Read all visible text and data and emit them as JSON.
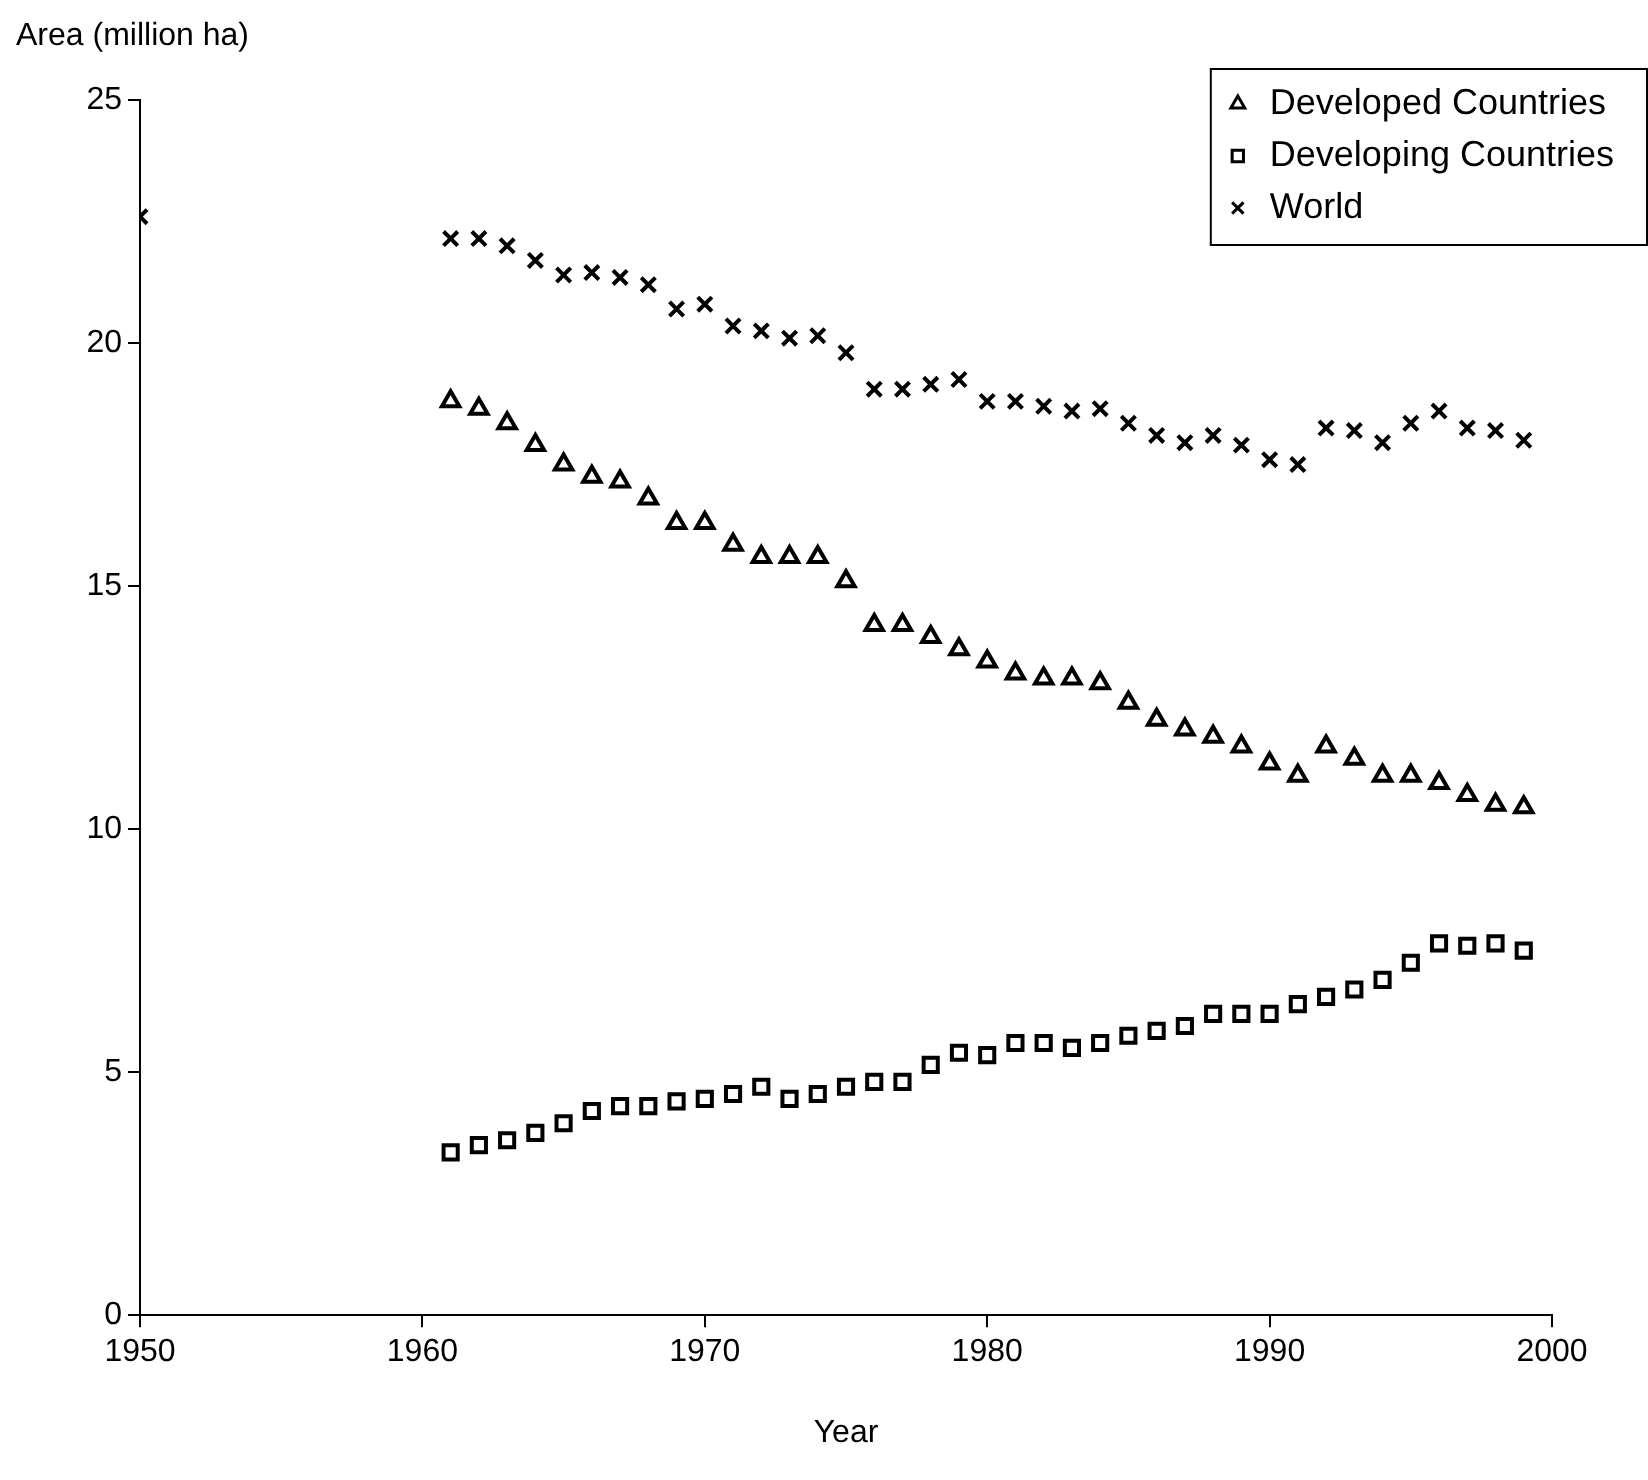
{
  "chart_data": {
    "type": "scatter",
    "xlabel": "Year",
    "ylabel": "Area (million ha)",
    "xlim": [
      1950,
      2000
    ],
    "xticks": [
      1950,
      1960,
      1970,
      1980,
      1990,
      2000
    ],
    "ylim": [
      0,
      25
    ],
    "yticks": [
      0,
      5,
      10,
      15,
      20,
      25
    ],
    "grid": false,
    "legend": "top right",
    "x": [
      1961,
      1962,
      1963,
      1964,
      1965,
      1966,
      1967,
      1968,
      1969,
      1970,
      1971,
      1972,
      1973,
      1974,
      1975,
      1976,
      1977,
      1978,
      1979,
      1980,
      1981,
      1982,
      1983,
      1984,
      1985,
      1986,
      1987,
      1988,
      1989,
      1990,
      1991,
      1992,
      1993,
      1994,
      1995,
      1996,
      1997,
      1998,
      1999
    ],
    "series": [
      {
        "name": "Developed Countries",
        "color": "#000000",
        "marker": "triangle",
        "values": [
          18.8,
          18.65,
          18.35,
          17.9,
          17.5,
          17.25,
          17.15,
          16.8,
          16.3,
          16.3,
          15.85,
          15.6,
          15.6,
          15.6,
          15.1,
          14.2,
          14.2,
          13.95,
          13.7,
          13.45,
          13.2,
          13.1,
          13.1,
          13.0,
          12.6,
          12.25,
          12.05,
          11.9,
          11.7,
          11.35,
          11.1,
          11.7,
          11.45,
          11.1,
          11.1,
          10.95,
          10.7,
          10.5,
          10.45
        ]
      },
      {
        "name": "Developing Countries",
        "color": "#000000",
        "marker": "square",
        "values": [
          3.35,
          3.5,
          3.6,
          3.75,
          3.95,
          4.2,
          4.3,
          4.3,
          4.4,
          4.45,
          4.55,
          4.7,
          4.45,
          4.55,
          4.7,
          4.8,
          4.8,
          5.15,
          5.4,
          5.35,
          5.6,
          5.6,
          5.5,
          5.6,
          5.75,
          5.85,
          5.95,
          6.2,
          6.2,
          6.2,
          6.4,
          6.55,
          6.7,
          6.9,
          7.25,
          7.65,
          7.6,
          7.65,
          7.5
        ]
      },
      {
        "name": "World",
        "color": "#000000",
        "marker": "cross",
        "x": [
          1950,
          1961,
          1962,
          1963,
          1964,
          1965,
          1966,
          1967,
          1968,
          1969,
          1970,
          1971,
          1972,
          1973,
          1974,
          1975,
          1976,
          1977,
          1978,
          1979,
          1980,
          1981,
          1982,
          1983,
          1984,
          1985,
          1986,
          1987,
          1988,
          1989,
          1990,
          1991,
          1992,
          1993,
          1994,
          1995,
          1996,
          1997,
          1998,
          1999
        ],
        "values": [
          22.6,
          22.15,
          22.15,
          22.0,
          21.7,
          21.4,
          21.45,
          21.35,
          21.2,
          20.7,
          20.8,
          20.35,
          20.25,
          20.1,
          20.15,
          19.8,
          19.05,
          19.05,
          19.15,
          19.25,
          18.8,
          18.8,
          18.7,
          18.6,
          18.65,
          18.35,
          18.1,
          17.95,
          18.1,
          17.9,
          17.6,
          17.5,
          18.25,
          18.2,
          17.95,
          18.35,
          18.6,
          18.25,
          18.2,
          18.0
        ]
      }
    ]
  }
}
